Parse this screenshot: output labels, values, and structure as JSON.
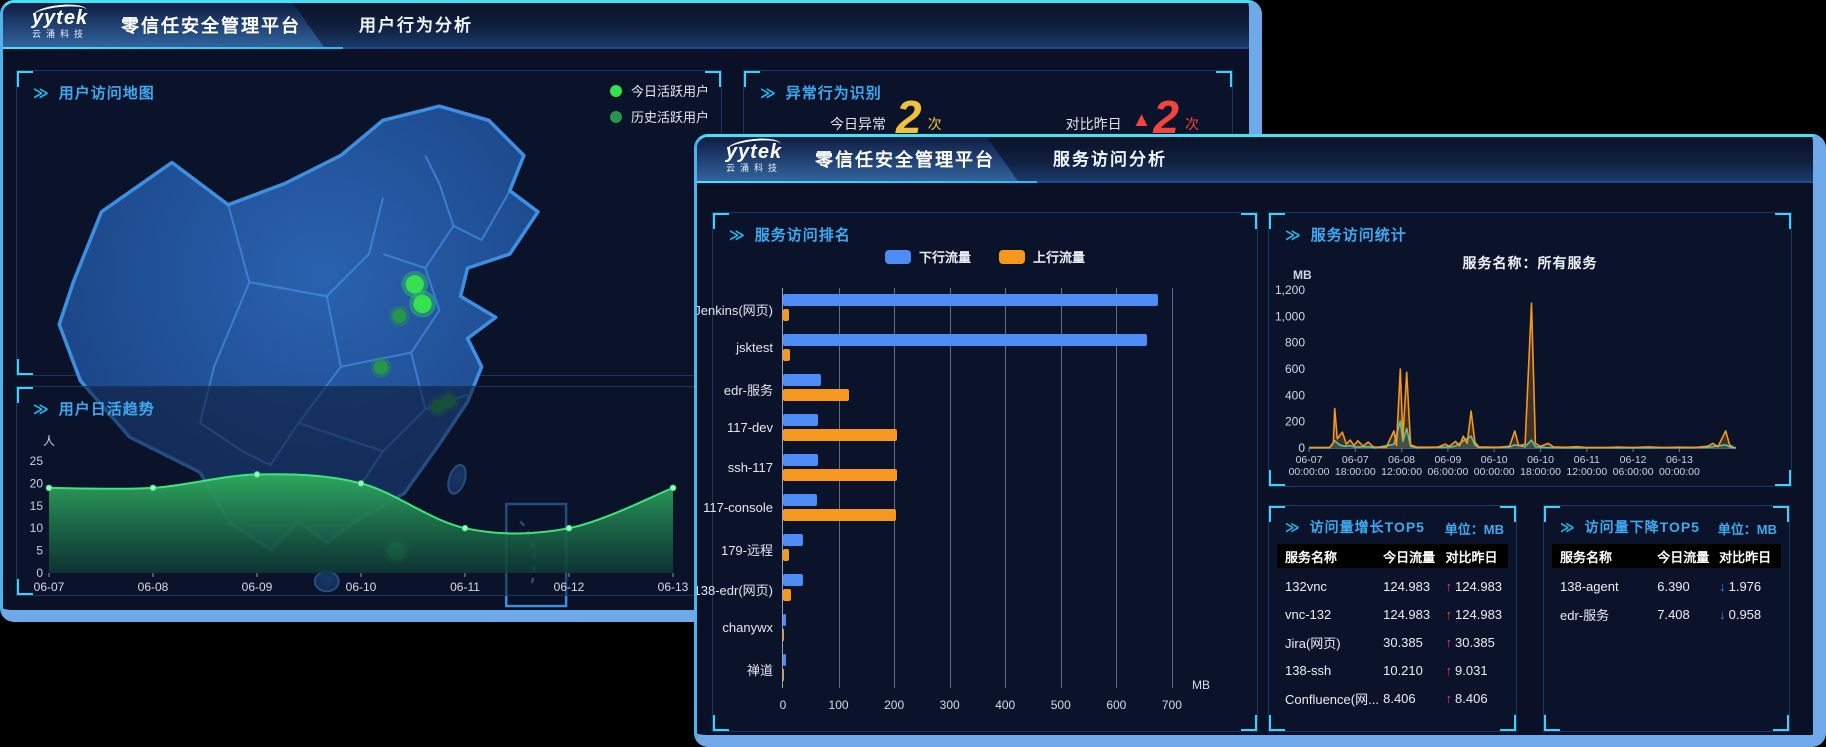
{
  "brand": {
    "name": "yytek",
    "sub": "云涌科技"
  },
  "back_window": {
    "title": "零信任安全管理平台",
    "tab": "用户行为分析",
    "map_panel": {
      "title": "用户访问地图",
      "legend": [
        {
          "label": "今日活跃用户",
          "color": "#35e14f"
        },
        {
          "label": "历史活跃用户",
          "color": "#27964d"
        }
      ],
      "points": [
        {
          "x": 56.5,
          "y": 30.3,
          "type": "today"
        },
        {
          "x": 57.6,
          "y": 33.1,
          "type": "today"
        },
        {
          "x": 53.9,
          "y": 68.2,
          "type": "today"
        },
        {
          "x": 54.3,
          "y": 34.8,
          "type": "history"
        },
        {
          "x": 51.7,
          "y": 42.1,
          "type": "history"
        },
        {
          "x": 59.8,
          "y": 47.7,
          "type": "history"
        },
        {
          "x": 61.3,
          "y": 46.9,
          "type": "history"
        }
      ]
    },
    "anomaly_panel": {
      "title": "异常行为识别",
      "stats": [
        {
          "label": "今日异常",
          "value": "2",
          "suffix": "次",
          "color": "#f2c13c",
          "arrow": ""
        },
        {
          "label": "对比昨日",
          "value": "2",
          "suffix": "次",
          "color": "#f5433e",
          "arrow": "▲"
        }
      ]
    },
    "trend_panel": {
      "title": "用户日活趋势"
    }
  },
  "front_window": {
    "title": "零信任安全管理平台",
    "tab": "服务访问分析",
    "ranking_panel": {
      "title": "服务访问排名"
    },
    "stats_panel": {
      "title": "服务访问统计",
      "subtitle": "服务名称：所有服务"
    },
    "growth_panel": {
      "title": "访问量增长TOP5",
      "unit": "单位：MB",
      "columns": [
        "服务名称",
        "今日流量",
        "对比昨日"
      ],
      "rows": [
        {
          "name": "132vnc",
          "today": "124.983",
          "dir": "up",
          "delta": "124.983"
        },
        {
          "name": "vnc-132",
          "today": "124.983",
          "dir": "up",
          "delta": "124.983"
        },
        {
          "name": "Jira(网页)",
          "today": "30.385",
          "dir": "up",
          "delta": "30.385"
        },
        {
          "name": "138-ssh",
          "today": "10.210",
          "dir": "up",
          "delta": "9.031"
        },
        {
          "name": "Confluence(网...",
          "today": "8.406",
          "dir": "up",
          "delta": "8.406"
        }
      ]
    },
    "decline_panel": {
      "title": "访问量下降TOP5",
      "unit": "单位：MB",
      "columns": [
        "服务名称",
        "今日流量",
        "对比昨日"
      ],
      "rows": [
        {
          "name": "138-agent",
          "today": "6.390",
          "dir": "down",
          "delta": "1.976"
        },
        {
          "name": "edr-服务",
          "today": "7.408",
          "dir": "down",
          "delta": "0.958"
        }
      ]
    },
    "arrow_glyphs": {
      "up": "↑",
      "down": "↓"
    },
    "arrow_colors": {
      "up": "#f0413d",
      "down": "#3f82f7"
    }
  },
  "chart_data": [
    {
      "id": "user_daily_active",
      "type": "area",
      "title": "用户日活趋势",
      "ylabel": "人",
      "ylim": [
        0,
        25
      ],
      "yticks": [
        0,
        5,
        10,
        15,
        20,
        25
      ],
      "categories": [
        "06-07",
        "06-08",
        "06-09",
        "06-10",
        "06-11",
        "06-12",
        "06-13"
      ],
      "values": [
        19,
        19,
        22,
        20,
        10,
        10,
        19
      ],
      "line_color": "#3ee57d",
      "marker_color": "#a9f4c4",
      "fill_top": "#2fae5f",
      "fill_bottom": "#0d3c36",
      "grid": false
    },
    {
      "id": "service_ranking",
      "type": "bar",
      "title": "服务访问排名",
      "unit": "MB",
      "xlim": [
        0,
        720
      ],
      "xticks": [
        0,
        100,
        200,
        300,
        400,
        500,
        600,
        700
      ],
      "categories": [
        "Jenkins(网页)",
        "jsktest",
        "edr-服务",
        "117-dev",
        "ssh-117",
        "117-console",
        "179-远程",
        "138-edr(网页)",
        "chanywx",
        "禅道"
      ],
      "series": [
        {
          "name": "下行流量",
          "color": "#4d8cf5",
          "values": [
            675,
            655,
            68,
            63,
            63,
            61,
            36,
            36,
            5,
            6
          ]
        },
        {
          "name": "上行流量",
          "color": "#f6981e",
          "values": [
            10,
            12,
            118,
            206,
            206,
            204,
            11,
            15,
            2,
            2
          ]
        }
      ],
      "legend_position": "top",
      "grid": true
    },
    {
      "id": "service_stats",
      "type": "line",
      "title": "服务访问统计",
      "subtitle": "服务名称：所有服务",
      "ylabel": "MB",
      "ylim": [
        0,
        1200
      ],
      "yticks": [
        0,
        200,
        400,
        600,
        800,
        1000,
        1200
      ],
      "x_hours_range": [
        0,
        166
      ],
      "tick_hours": [
        0,
        18,
        36,
        54,
        72,
        90,
        108,
        126,
        144
      ],
      "xticks": [
        {
          "date": "06-07",
          "time": "00:00:00"
        },
        {
          "date": "06-07",
          "time": "18:00:00"
        },
        {
          "date": "06-08",
          "time": "12:00:00"
        },
        {
          "date": "06-09",
          "time": "06:00:00"
        },
        {
          "date": "06-10",
          "time": "00:00:00"
        },
        {
          "date": "06-10",
          "time": "18:00:00"
        },
        {
          "date": "06-11",
          "time": "12:00:00"
        },
        {
          "date": "06-12",
          "time": "06:00:00"
        },
        {
          "date": "06-13",
          "time": "00:00:00"
        }
      ],
      "series": [
        {
          "name": "series-orange",
          "color": "#f6981e",
          "points": [
            [
              0,
              4
            ],
            [
              8,
              4
            ],
            [
              9.5,
              40
            ],
            [
              10,
              300
            ],
            [
              11,
              70
            ],
            [
              13,
              120
            ],
            [
              14.5,
              30
            ],
            [
              16,
              60
            ],
            [
              17.5,
              18
            ],
            [
              19,
              55
            ],
            [
              21,
              15
            ],
            [
              23,
              45
            ],
            [
              25,
              8
            ],
            [
              30,
              4
            ],
            [
              33,
              130
            ],
            [
              34,
              18
            ],
            [
              35.5,
              600
            ],
            [
              36.5,
              70
            ],
            [
              38,
              575
            ],
            [
              39.5,
              25
            ],
            [
              42,
              6
            ],
            [
              50,
              6
            ],
            [
              53,
              30
            ],
            [
              54.5,
              12
            ],
            [
              57,
              50
            ],
            [
              58.5,
              15
            ],
            [
              60,
              90
            ],
            [
              61.5,
              35
            ],
            [
              63,
              280
            ],
            [
              64.5,
              45
            ],
            [
              66,
              8
            ],
            [
              74,
              5
            ],
            [
              78,
              14
            ],
            [
              80,
              130
            ],
            [
              81.5,
              18
            ],
            [
              84,
              28
            ],
            [
              86.5,
              1100
            ],
            [
              88,
              35
            ],
            [
              90,
              12
            ],
            [
              93,
              35
            ],
            [
              95,
              8
            ],
            [
              100,
              5
            ],
            [
              104,
              10
            ],
            [
              108,
              4
            ],
            [
              116,
              4
            ],
            [
              120,
              7
            ],
            [
              126,
              4
            ],
            [
              132,
              8
            ],
            [
              138,
              4
            ],
            [
              144,
              6
            ],
            [
              150,
              4
            ],
            [
              155,
              14
            ],
            [
              157,
              35
            ],
            [
              159,
              10
            ],
            [
              162,
              130
            ],
            [
              163.5,
              22
            ],
            [
              165,
              8
            ]
          ]
        },
        {
          "name": "series-teal",
          "color": "#2fd0c0",
          "points": [
            [
              0,
              2
            ],
            [
              8,
              2
            ],
            [
              10,
              55
            ],
            [
              12,
              22
            ],
            [
              14,
              14
            ],
            [
              16,
              18
            ],
            [
              18,
              7
            ],
            [
              23,
              10
            ],
            [
              26,
              2
            ],
            [
              33,
              28
            ],
            [
              35.5,
              205
            ],
            [
              36.5,
              50
            ],
            [
              38,
              150
            ],
            [
              39.5,
              12
            ],
            [
              42,
              2
            ],
            [
              55,
              8
            ],
            [
              57,
              14
            ],
            [
              60,
              55
            ],
            [
              63,
              90
            ],
            [
              64.5,
              22
            ],
            [
              66,
              3
            ],
            [
              78,
              7
            ],
            [
              80,
              24
            ],
            [
              84,
              9
            ],
            [
              86.5,
              60
            ],
            [
              88,
              10
            ],
            [
              92,
              4
            ],
            [
              100,
              2
            ],
            [
              120,
              2
            ],
            [
              140,
              2
            ],
            [
              155,
              5
            ],
            [
              162,
              24
            ],
            [
              164,
              3
            ],
            [
              166,
              2
            ]
          ]
        }
      ],
      "grid": false,
      "legend": "none"
    }
  ]
}
